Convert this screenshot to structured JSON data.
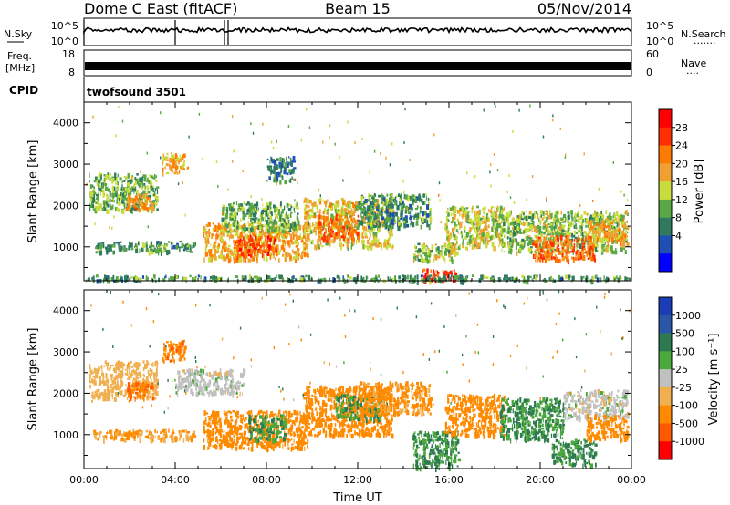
{
  "header": {
    "station": "Dome C East (fitACF)",
    "beam": "Beam 15",
    "date": "05/Nov/2014"
  },
  "panels": {
    "nsky_label": "N.Sky",
    "nsearch_label": "N.Search",
    "nsearch_dots": "·······",
    "noise_ticks": [
      "10^5",
      "10^0"
    ],
    "freq_label": "Freq.",
    "freq_unit": "[MHz]",
    "freq_ticks": [
      "18",
      "8"
    ],
    "nave_label": "Nave",
    "nave_dots": "····",
    "nave_ticks": [
      "60",
      "0"
    ],
    "cpid_label": "CPID",
    "cpid_value": "twofsound 3501"
  },
  "colors": {
    "power": [
      "#0000ff",
      "#1e4fb4",
      "#2f7a5e",
      "#5aa845",
      "#c8dc3c",
      "#f0a030",
      "#ff7a00",
      "#ff3000",
      "#ff0000"
    ],
    "velocity": [
      "#1a3cb4",
      "#2a56a8",
      "#2e7a50",
      "#4aa83c",
      "#c0c0c0",
      "#f0b050",
      "#ff8a00",
      "#ff5a00",
      "#ff0000"
    ]
  },
  "chart_data": [
    {
      "type": "heatmap",
      "name": "power",
      "xlabel": "",
      "ylabel": "Slant Range [km]",
      "x_ticks": [
        "00:00",
        "04:00",
        "08:00",
        "12:00",
        "16:00",
        "20:00",
        "00:00"
      ],
      "xlim_hours": [
        0,
        24
      ],
      "y_ticks": [
        1000,
        2000,
        3000,
        4000
      ],
      "ylim": [
        180,
        4500
      ],
      "colorbar_label": "Power [dB]",
      "colorbar_ticks": [
        "28",
        "24",
        "20",
        "16",
        "12",
        "8",
        "4"
      ],
      "regions": [
        {
          "t0": 0.2,
          "t1": 3.2,
          "r0": 1900,
          "r1": 2800,
          "v": 12
        },
        {
          "t0": 0.4,
          "t1": 4.8,
          "r0": 900,
          "r1": 1150,
          "v": 10
        },
        {
          "t0": 1.8,
          "t1": 3.0,
          "r0": 1900,
          "r1": 2300,
          "v": 22
        },
        {
          "t0": 3.4,
          "t1": 4.4,
          "r0": 2800,
          "r1": 3300,
          "v": 20
        },
        {
          "t0": 5.2,
          "t1": 9.8,
          "r0": 700,
          "r1": 1600,
          "v": 20
        },
        {
          "t0": 6.0,
          "t1": 9.4,
          "r0": 1400,
          "r1": 2100,
          "v": 12
        },
        {
          "t0": 6.6,
          "t1": 8.4,
          "r0": 800,
          "r1": 1300,
          "v": 27
        },
        {
          "t0": 8.0,
          "t1": 9.2,
          "r0": 2600,
          "r1": 3200,
          "v": 8
        },
        {
          "t0": 9.6,
          "t1": 13.5,
          "r0": 1000,
          "r1": 2200,
          "v": 18
        },
        {
          "t0": 10.2,
          "t1": 12.0,
          "r0": 1200,
          "r1": 1800,
          "v": 25
        },
        {
          "t0": 12.0,
          "t1": 15.2,
          "r0": 1500,
          "r1": 2300,
          "v": 10
        },
        {
          "t0": 14.4,
          "t1": 16.4,
          "r0": 700,
          "r1": 1100,
          "v": 14
        },
        {
          "t0": 14.8,
          "t1": 16.3,
          "r0": 200,
          "r1": 500,
          "v": 29
        },
        {
          "t0": 15.8,
          "t1": 18.4,
          "r0": 1000,
          "r1": 2000,
          "v": 16
        },
        {
          "t0": 18.2,
          "t1": 23.8,
          "r0": 900,
          "r1": 1900,
          "v": 14
        },
        {
          "t0": 19.6,
          "t1": 22.4,
          "r0": 700,
          "r1": 1300,
          "v": 24
        },
        {
          "t0": 22.0,
          "t1": 23.8,
          "r0": 1100,
          "r1": 1700,
          "v": 20
        },
        {
          "t0": 0.0,
          "t1": 24.0,
          "r0": 200,
          "r1": 330,
          "v": 10
        }
      ]
    },
    {
      "type": "heatmap",
      "name": "velocity",
      "xlabel": "Time UT",
      "ylabel": "Slant Range [km]",
      "x_ticks": [
        "00:00",
        "04:00",
        "08:00",
        "12:00",
        "16:00",
        "20:00",
        "00:00"
      ],
      "xlim_hours": [
        0,
        24
      ],
      "y_ticks": [
        1000,
        2000,
        3000,
        4000
      ],
      "ylim": [
        180,
        4500
      ],
      "colorbar_label": "Velocity [m s⁻¹]",
      "colorbar_ticks": [
        "1000",
        "500",
        "100",
        "25",
        "-25",
        "-100",
        "-500",
        "-1000"
      ],
      "regions": [
        {
          "t0": 0.2,
          "t1": 3.2,
          "r0": 1900,
          "r1": 2800,
          "v": -40
        },
        {
          "t0": 0.4,
          "t1": 4.8,
          "r0": 900,
          "r1": 1150,
          "v": -60
        },
        {
          "t0": 1.8,
          "t1": 3.0,
          "r0": 1900,
          "r1": 2300,
          "v": -300
        },
        {
          "t0": 3.4,
          "t1": 4.4,
          "r0": 2800,
          "r1": 3300,
          "v": -250
        },
        {
          "t0": 4.0,
          "t1": 7.0,
          "r0": 2000,
          "r1": 2600,
          "v": 0
        },
        {
          "t0": 5.2,
          "t1": 9.8,
          "r0": 700,
          "r1": 1600,
          "v": -200
        },
        {
          "t0": 7.2,
          "t1": 8.8,
          "r0": 900,
          "r1": 1500,
          "v": 60
        },
        {
          "t0": 9.6,
          "t1": 13.5,
          "r0": 1000,
          "r1": 2200,
          "v": -150
        },
        {
          "t0": 11.0,
          "t1": 13.0,
          "r0": 1400,
          "r1": 2000,
          "v": 60
        },
        {
          "t0": 12.0,
          "t1": 15.2,
          "r0": 1500,
          "r1": 2300,
          "v": -80
        },
        {
          "t0": 14.4,
          "t1": 16.4,
          "r0": 200,
          "r1": 1100,
          "v": 60
        },
        {
          "t0": 15.8,
          "t1": 18.4,
          "r0": 1000,
          "r1": 2000,
          "v": -120
        },
        {
          "t0": 18.2,
          "t1": 21.0,
          "r0": 900,
          "r1": 1900,
          "v": 60
        },
        {
          "t0": 21.0,
          "t1": 23.8,
          "r0": 1400,
          "r1": 2100,
          "v": 0
        },
        {
          "t0": 20.5,
          "t1": 22.4,
          "r0": 300,
          "r1": 900,
          "v": 70
        },
        {
          "t0": 22.0,
          "t1": 23.8,
          "r0": 900,
          "r1": 1500,
          "v": -120
        }
      ]
    }
  ]
}
